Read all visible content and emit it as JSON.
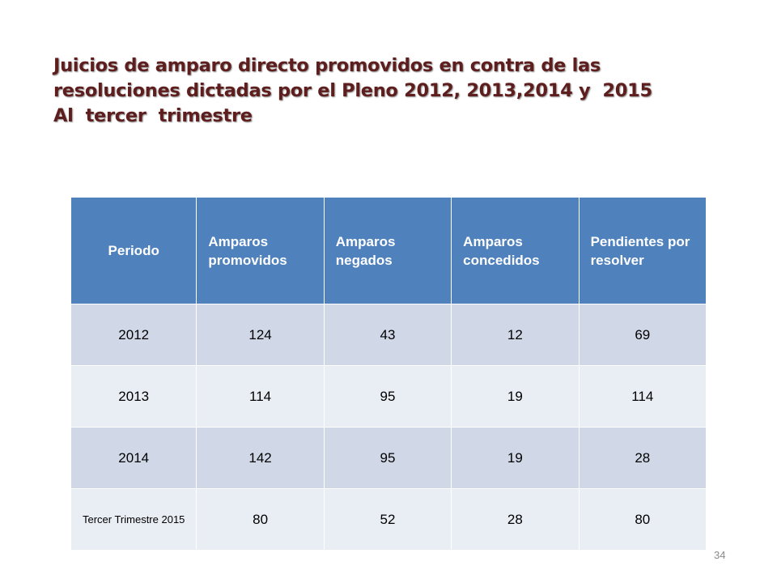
{
  "title": {
    "lines": [
      "Juicios de amparo directo promovidos en contra de las",
      "resoluciones dictadas por el Pleno 2012, 2013,2014 y  2015",
      "Al  tercer  trimestre"
    ]
  },
  "table": {
    "headers": [
      "Periodo",
      "Amparos promovidos",
      "Amparos negados",
      "Amparos concedidos",
      "Pendientes por resolver"
    ],
    "rows": [
      [
        "2012",
        "124",
        "43",
        "12",
        "69"
      ],
      [
        "2013",
        "114",
        "95",
        "19",
        "114"
      ],
      [
        "2014",
        "142",
        "95",
        "19",
        "28"
      ],
      [
        "Tercer Trimestre 2015",
        "80",
        "52",
        "28",
        "80"
      ]
    ]
  },
  "colors": {
    "title": "#5e1e1e",
    "header_bg": "#4f81bd",
    "row_band_1": "#d0d8e8",
    "row_band_2": "#e9edf4"
  },
  "page_number": "34"
}
